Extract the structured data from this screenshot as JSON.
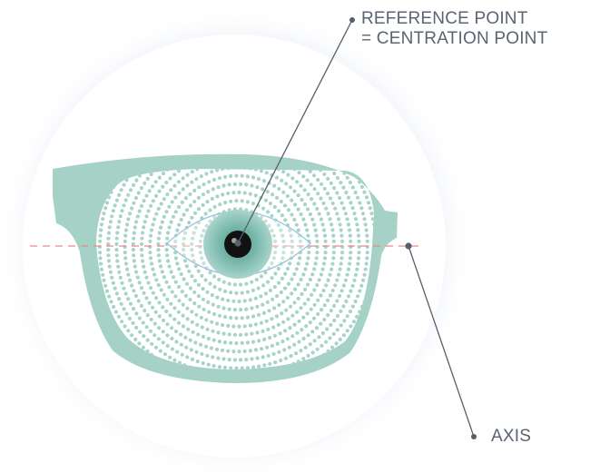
{
  "labels": {
    "reference_line1": "REFERENCE POINT",
    "reference_line2": "= CENTRATION POINT",
    "axis": "AXIS"
  },
  "colors": {
    "frame": "#a5d1c6",
    "dots": "#a8d4c8",
    "iris": "#6fb1a4",
    "pupil": "#111111",
    "eye_outline": "#9cc3de",
    "axis_line": "#e88a8a",
    "leader_line": "#55606c",
    "halo": "#dde5f3",
    "label_text": "#5a6472"
  },
  "icons": {
    "glasses": "eyeglasses-lens-icon",
    "eye": "eye-icon"
  }
}
